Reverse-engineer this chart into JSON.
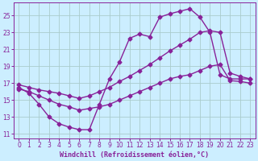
{
  "bg_color": "#cceeff",
  "grid_color": "#aacccc",
  "line_color": "#882299",
  "marker": "D",
  "markersize": 2.5,
  "linewidth": 1.0,
  "xlabel": "Windchill (Refroidissement éolien,°C)",
  "xlabel_fontsize": 6.0,
  "tick_fontsize": 5.5,
  "xlim": [
    -0.5,
    23.5
  ],
  "ylim": [
    10.5,
    26.5
  ],
  "yticks": [
    11,
    13,
    15,
    17,
    19,
    21,
    23,
    25
  ],
  "xticks": [
    0,
    1,
    2,
    3,
    4,
    5,
    6,
    7,
    8,
    9,
    10,
    11,
    12,
    13,
    14,
    15,
    16,
    17,
    18,
    19,
    20,
    21,
    22,
    23
  ],
  "line1_x": [
    0,
    1,
    2,
    3,
    4,
    5,
    6,
    7,
    8,
    9,
    10,
    11,
    12,
    13,
    14,
    15,
    16,
    17,
    18,
    19,
    20,
    21,
    22,
    23
  ],
  "line1_y": [
    16.5,
    15.8,
    14.5,
    13.0,
    12.2,
    11.8,
    11.5,
    11.5,
    14.5,
    17.5,
    19.5,
    22.3,
    22.8,
    22.5,
    24.8,
    25.2,
    25.5,
    25.8,
    24.8,
    23.0,
    18.0,
    17.5,
    17.5,
    17.5
  ],
  "line2_x": [
    0,
    1,
    2,
    3,
    4,
    5,
    6,
    7,
    8,
    9,
    10,
    11,
    12,
    13,
    14,
    15,
    16,
    17,
    18,
    19,
    20,
    21,
    22,
    23
  ],
  "line2_y": [
    16.8,
    16.5,
    16.2,
    16.0,
    15.8,
    15.5,
    15.2,
    15.5,
    16.0,
    16.5,
    17.2,
    17.8,
    18.5,
    19.2,
    20.0,
    20.8,
    21.5,
    22.2,
    23.0,
    23.2,
    23.0,
    18.2,
    17.8,
    17.5
  ],
  "line3_x": [
    0,
    1,
    2,
    3,
    4,
    5,
    6,
    7,
    8,
    9,
    10,
    11,
    12,
    13,
    14,
    15,
    16,
    17,
    18,
    19,
    20,
    21,
    22,
    23
  ],
  "line3_y": [
    16.3,
    16.0,
    15.5,
    15.0,
    14.5,
    14.2,
    13.8,
    14.0,
    14.2,
    14.5,
    15.0,
    15.5,
    16.0,
    16.5,
    17.0,
    17.5,
    17.8,
    18.0,
    18.5,
    19.0,
    19.2,
    17.3,
    17.2,
    17.0
  ]
}
